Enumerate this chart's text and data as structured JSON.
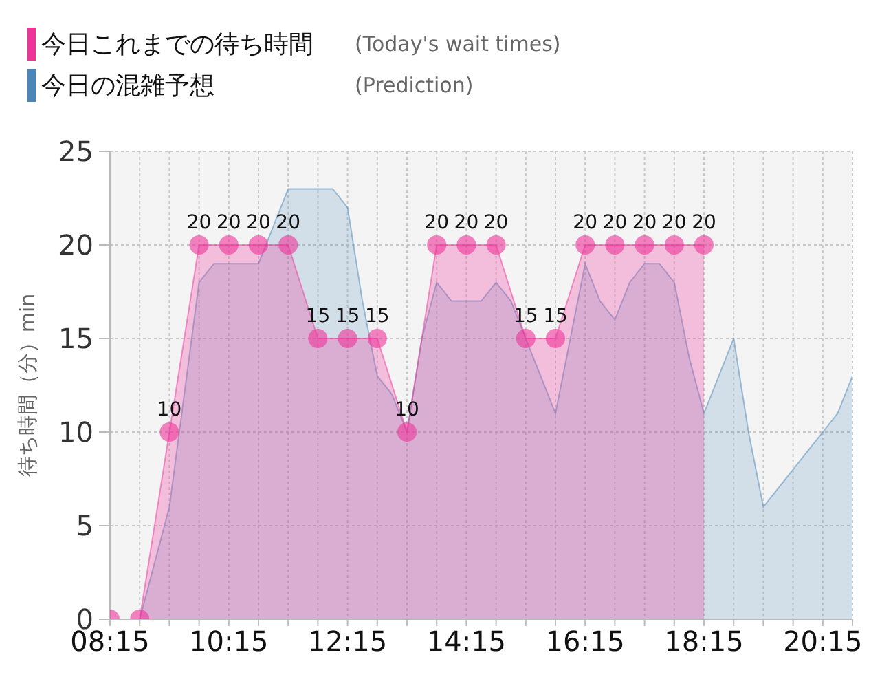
{
  "chart_data": {
    "type": "area",
    "ylabel": "待ち時間（分）min",
    "annotations": [
      "(Today's wait times)",
      "(Prediction)"
    ],
    "series": [
      {
        "name": "今日これまでの待ち時間",
        "color": "#ee3399",
        "marker": "circle",
        "x": [
          8.25,
          8.75,
          9.25,
          9.75,
          10.25,
          10.75,
          11.25,
          11.75,
          12.25,
          12.75,
          13.25,
          13.75,
          14.25,
          14.75,
          15.25,
          15.75,
          16.25,
          16.75,
          17.25,
          17.75,
          18.25
        ],
        "values": [
          0,
          0,
          10,
          20,
          20,
          20,
          20,
          15,
          15,
          15,
          10,
          20,
          20,
          20,
          15,
          15,
          20,
          20,
          20,
          20,
          20
        ],
        "value_labels": [
          null,
          null,
          "10",
          "20",
          "20",
          "20",
          "20",
          "15",
          "15",
          "15",
          "10",
          "20",
          "20",
          "20",
          "15",
          "15",
          "20",
          "20",
          "20",
          "20",
          "20"
        ]
      },
      {
        "name": "今日の混雑予想",
        "color": "#4a86b8",
        "marker": "none",
        "x": [
          8.25,
          8.5,
          8.75,
          9,
          9.25,
          9.5,
          9.75,
          10,
          10.25,
          10.5,
          10.75,
          11,
          11.25,
          11.5,
          11.75,
          12,
          12.25,
          12.5,
          12.75,
          13,
          13.25,
          13.5,
          13.75,
          14,
          14.25,
          14.5,
          14.75,
          15,
          15.25,
          15.5,
          15.75,
          16,
          16.25,
          16.5,
          16.75,
          17,
          17.25,
          17.5,
          17.75,
          18,
          18.25,
          18.5,
          18.75,
          19,
          19.25,
          19.5,
          19.75,
          20,
          20.25,
          20.5,
          20.75
        ],
        "values": [
          0,
          0,
          0,
          3,
          6,
          12,
          18,
          19,
          19,
          19,
          19,
          21,
          23,
          23,
          23,
          23,
          22,
          17,
          13,
          12,
          10,
          15,
          18,
          17,
          17,
          17,
          18,
          17,
          15,
          13,
          11,
          15,
          19,
          17,
          16,
          18,
          19,
          19,
          18,
          14,
          11,
          13,
          15,
          10,
          6,
          7,
          8,
          9,
          10,
          11,
          13
        ]
      }
    ],
    "xlim": [
      8.25,
      20.75
    ],
    "xticks": [
      {
        "value": 8.25,
        "label": "08:15"
      },
      {
        "value": 8.75,
        "label": null
      },
      {
        "value": 9.25,
        "label": null
      },
      {
        "value": 9.75,
        "label": null
      },
      {
        "value": 10.25,
        "label": "10:15"
      },
      {
        "value": 10.75,
        "label": null
      },
      {
        "value": 11.25,
        "label": null
      },
      {
        "value": 11.75,
        "label": null
      },
      {
        "value": 12.25,
        "label": "12:15"
      },
      {
        "value": 12.75,
        "label": null
      },
      {
        "value": 13.25,
        "label": null
      },
      {
        "value": 13.75,
        "label": null
      },
      {
        "value": 14.25,
        "label": "14:15"
      },
      {
        "value": 14.75,
        "label": null
      },
      {
        "value": 15.25,
        "label": null
      },
      {
        "value": 15.75,
        "label": null
      },
      {
        "value": 16.25,
        "label": "16:15"
      },
      {
        "value": 16.75,
        "label": null
      },
      {
        "value": 17.25,
        "label": null
      },
      {
        "value": 17.75,
        "label": null
      },
      {
        "value": 18.25,
        "label": "18:15"
      },
      {
        "value": 18.75,
        "label": null
      },
      {
        "value": 19.25,
        "label": null
      },
      {
        "value": 19.75,
        "label": null
      },
      {
        "value": 20.25,
        "label": "20:15"
      },
      {
        "value": 20.75,
        "label": null
      }
    ],
    "ylim": [
      0,
      25
    ],
    "yticks": [
      0,
      5,
      10,
      15,
      20,
      25
    ],
    "grid": true,
    "legend": "top left"
  }
}
